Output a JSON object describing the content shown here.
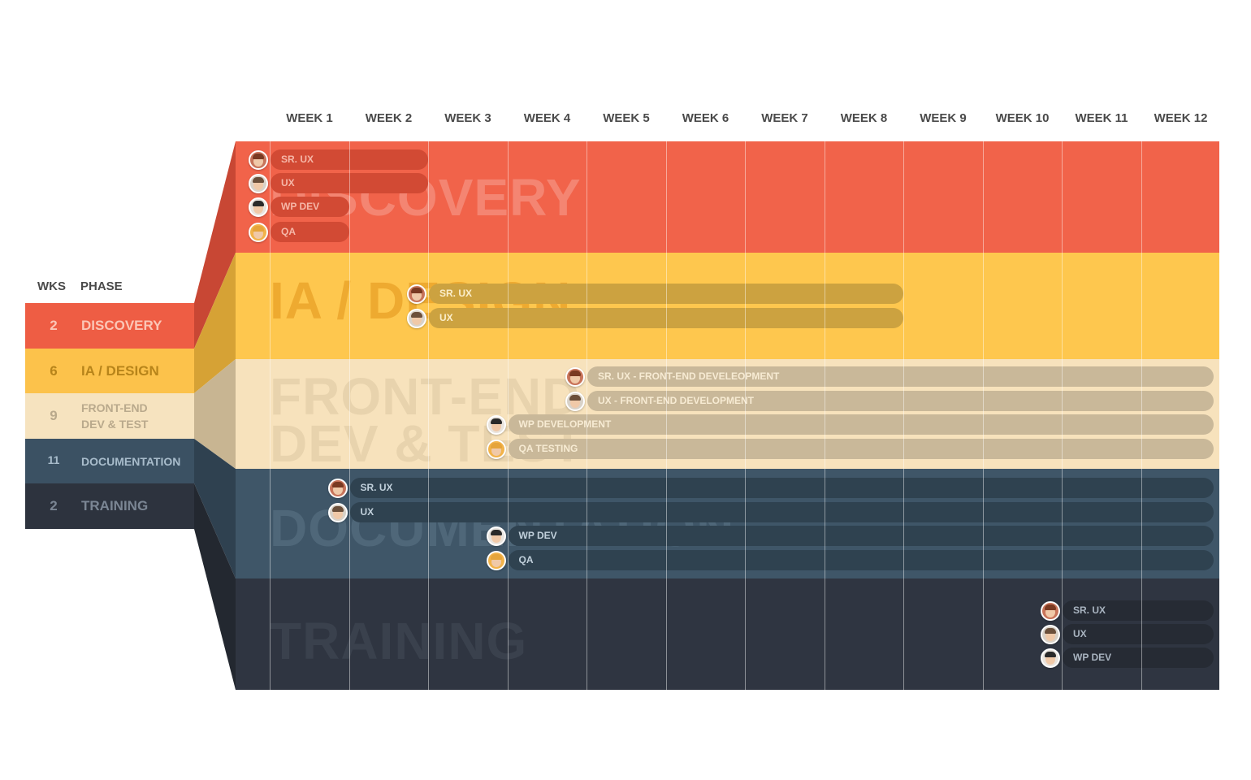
{
  "weeks": [
    "WEEK 1",
    "WEEK 2",
    "WEEK 3",
    "WEEK 4",
    "WEEK 5",
    "WEEK 6",
    "WEEK 7",
    "WEEK 8",
    "WEEK 9",
    "WEEK 10",
    "WEEK 11",
    "WEEK 12"
  ],
  "legend": {
    "wks_header": "WKS",
    "phase_header": "PHASE",
    "rows": [
      {
        "wks": "2",
        "phase": "DISCOVERY",
        "bg": "#ee5d44",
        "fg": "#fbc6b6"
      },
      {
        "wks": "6",
        "phase": "IA / DESIGN",
        "bg": "#fcc24b",
        "fg": "#b7841a"
      },
      {
        "wks": "9",
        "phase": "FRONT-END\nDEV & TEST",
        "bg": "#f6e3bf",
        "fg": "#b9a98c"
      },
      {
        "wks": "11",
        "phase": "DOCUMENTATION",
        "bg": "#3b5163",
        "fg": "#a8bccb"
      },
      {
        "wks": "2",
        "phase": "TRAINING",
        "bg": "#2d333e",
        "fg": "#7b8694"
      }
    ]
  },
  "phases": [
    {
      "title": "DISCOVERY",
      "color": "#f1634a",
      "title_color": "#f48572",
      "bar_color": "#d24a34",
      "label_color": "#f6b7a8",
      "tasks": [
        {
          "label": "SR. UX",
          "start_week": 1,
          "end_week": 2,
          "avatar": "avatar-man-red-beard"
        },
        {
          "label": "UX",
          "start_week": 1,
          "end_week": 2,
          "avatar": "avatar-man-glasses"
        },
        {
          "label": "WP DEV",
          "start_week": 1,
          "end_week": 1,
          "avatar": "avatar-man-dark"
        },
        {
          "label": "QA",
          "start_week": 1,
          "end_week": 1,
          "avatar": "avatar-woman-blonde"
        }
      ]
    },
    {
      "title": "IA / DESIGN",
      "color": "#fec74e",
      "title_color": "#eeaa30",
      "bar_color": "#cca240",
      "label_color": "#fbeecb",
      "tasks": [
        {
          "label": "SR. UX",
          "start_week": 3,
          "end_week": 8,
          "avatar": "avatar-man-red-beard"
        },
        {
          "label": "UX",
          "start_week": 3,
          "end_week": 8,
          "avatar": "avatar-man-glasses"
        }
      ]
    },
    {
      "title": "FRONT-END\nDEV & TEST",
      "color": "#f7e2bc",
      "title_color": "#e8d3ad",
      "bar_color": "#c9b899",
      "label_color": "#f7ebd3",
      "tasks": [
        {
          "label": "SR. UX - FRONT-END DEVELEOPMENT",
          "start_week": 5,
          "end_week": 12,
          "avatar": "avatar-man-red-beard"
        },
        {
          "label": "UX - FRONT-END DEVELOPMENT",
          "start_week": 5,
          "end_week": 12,
          "avatar": "avatar-man-glasses"
        },
        {
          "label": "WP DEVELOPMENT",
          "start_week": 4,
          "end_week": 12,
          "avatar": "avatar-man-dark"
        },
        {
          "label": "QA TESTING",
          "start_week": 4,
          "end_week": 12,
          "avatar": "avatar-woman-blonde"
        }
      ]
    },
    {
      "title": "DOCUMENTATION",
      "color": "#3f5668",
      "title_color": "#4f6779",
      "bar_color": "#2f4250",
      "label_color": "#c1d0db",
      "tasks": [
        {
          "label": "SR. UX",
          "start_week": 2,
          "end_week": 12,
          "avatar": "avatar-man-red-beard"
        },
        {
          "label": "UX",
          "start_week": 2,
          "end_week": 12,
          "avatar": "avatar-man-glasses"
        },
        {
          "label": "WP DEV",
          "start_week": 4,
          "end_week": 12,
          "avatar": "avatar-man-dark"
        },
        {
          "label": "QA",
          "start_week": 4,
          "end_week": 12,
          "avatar": "avatar-woman-blonde"
        }
      ]
    },
    {
      "title": "TRAINING",
      "color": "#2f3541",
      "title_color": "#3a414d",
      "bar_color": "#262b34",
      "label_color": "#a9b4c0",
      "tasks": [
        {
          "label": "SR. UX",
          "start_week": 11,
          "end_week": 12,
          "avatar": "avatar-man-red-beard"
        },
        {
          "label": "UX",
          "start_week": 11,
          "end_week": 12,
          "avatar": "avatar-man-glasses"
        },
        {
          "label": "WP DEV",
          "start_week": 11,
          "end_week": 12,
          "avatar": "avatar-man-dark"
        }
      ]
    }
  ],
  "funnel_colors": [
    "#c84734",
    "#d6a235",
    "#c8b592",
    "#2f4150",
    "#232830"
  ]
}
